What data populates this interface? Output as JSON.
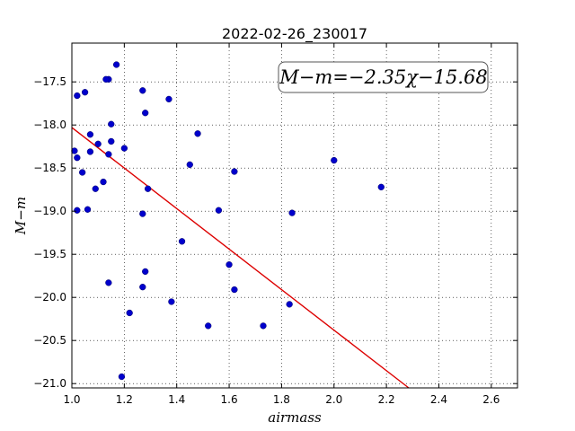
{
  "chart_data": {
    "type": "scatter",
    "title": "2022-02-26_230017",
    "xlabel": "airmass",
    "ylabel": "M−m",
    "xlim": [
      1.0,
      2.7
    ],
    "ylim": [
      -21.05,
      -17.05
    ],
    "y_inverted": true,
    "grid": true,
    "x_ticks": [
      1.0,
      1.2,
      1.4,
      1.6,
      1.8,
      2.0,
      2.2,
      2.4,
      2.6
    ],
    "x_tick_labels": [
      "1.0",
      "1.2",
      "1.4",
      "1.6",
      "1.8",
      "2.0",
      "2.2",
      "2.4",
      "2.6"
    ],
    "y_ticks": [
      -17.5,
      -18.0,
      -18.5,
      -19.0,
      -19.5,
      -20.0,
      -20.5,
      -21.0
    ],
    "y_tick_labels": [
      "−17.5",
      "−18.0",
      "−18.5",
      "−19.0",
      "−19.5",
      "−20.0",
      "−20.5",
      "−21.0"
    ],
    "annotation": "M−m=−2.35χ−15.68",
    "point_color": "#0000cc",
    "line_color": "#dd0000",
    "fit": {
      "slope": -2.35,
      "intercept": -15.68
    },
    "points": [
      {
        "x": 1.02,
        "y": -17.66
      },
      {
        "x": 1.05,
        "y": -17.62
      },
      {
        "x": 1.14,
        "y": -17.47
      },
      {
        "x": 1.13,
        "y": -17.47
      },
      {
        "x": 1.17,
        "y": -17.3
      },
      {
        "x": 1.27,
        "y": -17.6
      },
      {
        "x": 1.37,
        "y": -17.7
      },
      {
        "x": 1.28,
        "y": -17.86
      },
      {
        "x": 1.15,
        "y": -17.99
      },
      {
        "x": 1.07,
        "y": -18.11
      },
      {
        "x": 1.48,
        "y": -18.1
      },
      {
        "x": 1.1,
        "y": -18.22
      },
      {
        "x": 1.15,
        "y": -18.19
      },
      {
        "x": 1.2,
        "y": -18.27
      },
      {
        "x": 1.01,
        "y": -18.3
      },
      {
        "x": 1.07,
        "y": -18.31
      },
      {
        "x": 1.14,
        "y": -18.34
      },
      {
        "x": 1.02,
        "y": -18.38
      },
      {
        "x": 1.45,
        "y": -18.46
      },
      {
        "x": 1.04,
        "y": -18.55
      },
      {
        "x": 1.62,
        "y": -18.54
      },
      {
        "x": 2.0,
        "y": -18.41
      },
      {
        "x": 1.12,
        "y": -18.66
      },
      {
        "x": 1.09,
        "y": -18.74
      },
      {
        "x": 1.29,
        "y": -18.74
      },
      {
        "x": 2.18,
        "y": -18.72
      },
      {
        "x": 1.02,
        "y": -18.99
      },
      {
        "x": 1.06,
        "y": -18.98
      },
      {
        "x": 1.27,
        "y": -19.03
      },
      {
        "x": 1.56,
        "y": -18.99
      },
      {
        "x": 1.84,
        "y": -19.02
      },
      {
        "x": 1.42,
        "y": -19.35
      },
      {
        "x": 1.6,
        "y": -19.62
      },
      {
        "x": 1.28,
        "y": -19.7
      },
      {
        "x": 1.14,
        "y": -19.83
      },
      {
        "x": 1.27,
        "y": -19.88
      },
      {
        "x": 1.62,
        "y": -19.91
      },
      {
        "x": 1.38,
        "y": -20.05
      },
      {
        "x": 1.83,
        "y": -20.08
      },
      {
        "x": 1.22,
        "y": -20.18
      },
      {
        "x": 1.52,
        "y": -20.33
      },
      {
        "x": 1.73,
        "y": -20.33
      },
      {
        "x": 1.19,
        "y": -20.92
      }
    ]
  }
}
